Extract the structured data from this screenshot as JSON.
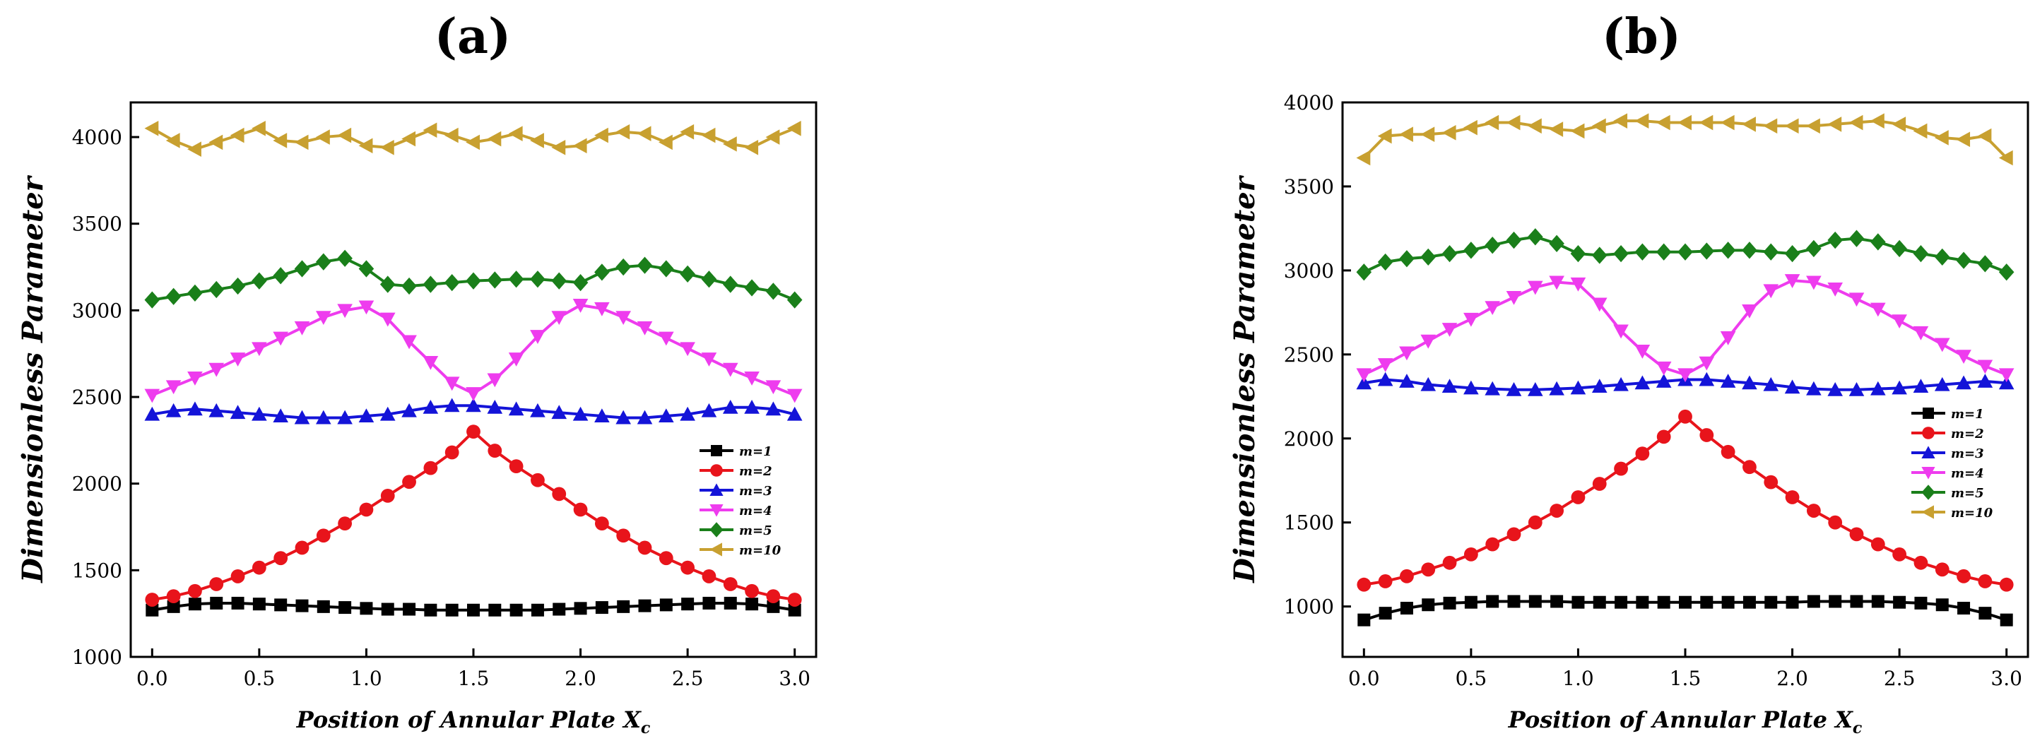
{
  "figure": {
    "panel_labels": [
      "(a)",
      "(b)"
    ]
  },
  "colors": {
    "m1": "#000000",
    "m2": "#e8141b",
    "m3": "#1414d8",
    "m4": "#ee3cee",
    "m5": "#1a7f1a",
    "m10": "#c8a030",
    "axis": "#000000"
  },
  "chart_data": [
    {
      "type": "line",
      "panel": "(a)",
      "xlabel": "Position of Annular Plate X",
      "xlabel_sub": "c",
      "ylabel": "Dimensionless Parameter",
      "xlim": [
        -0.1,
        3.1
      ],
      "ylim": [
        1000,
        4200
      ],
      "xticks": [
        0.0,
        0.5,
        1.0,
        1.5,
        2.0,
        2.5,
        3.0
      ],
      "xtick_labels": [
        "0.0",
        "0.5",
        "1.0",
        "1.5",
        "2.0",
        "2.5",
        "3.0"
      ],
      "yticks": [
        1000,
        1500,
        2000,
        2500,
        3000,
        3500,
        4000
      ],
      "ytick_labels": [
        "1000",
        "1500",
        "2000",
        "2500",
        "3000",
        "3500",
        "4000"
      ],
      "legend_position": "lower-right",
      "x": [
        0.0,
        0.1,
        0.2,
        0.3,
        0.4,
        0.5,
        0.6,
        0.7,
        0.8,
        0.9,
        1.0,
        1.1,
        1.2,
        1.3,
        1.4,
        1.5,
        1.6,
        1.7,
        1.8,
        1.9,
        2.0,
        2.1,
        2.2,
        2.3,
        2.4,
        2.5,
        2.6,
        2.7,
        2.8,
        2.9,
        3.0
      ],
      "series": [
        {
          "name": "m=1",
          "marker": "square",
          "values": [
            1270,
            1290,
            1305,
            1310,
            1310,
            1305,
            1300,
            1295,
            1290,
            1285,
            1280,
            1275,
            1275,
            1270,
            1270,
            1270,
            1270,
            1270,
            1270,
            1275,
            1280,
            1285,
            1290,
            1295,
            1300,
            1305,
            1310,
            1310,
            1305,
            1290,
            1270
          ]
        },
        {
          "name": "m=2",
          "marker": "circle",
          "values": [
            1330,
            1350,
            1380,
            1420,
            1465,
            1515,
            1570,
            1630,
            1700,
            1770,
            1850,
            1930,
            2010,
            2090,
            2180,
            2300,
            2190,
            2100,
            2020,
            1940,
            1850,
            1770,
            1700,
            1630,
            1570,
            1515,
            1465,
            1420,
            1380,
            1350,
            1330
          ]
        },
        {
          "name": "m=3",
          "marker": "triangle-up",
          "values": [
            2400,
            2420,
            2430,
            2420,
            2410,
            2400,
            2390,
            2380,
            2380,
            2380,
            2390,
            2400,
            2420,
            2440,
            2450,
            2450,
            2440,
            2430,
            2420,
            2410,
            2400,
            2390,
            2380,
            2380,
            2390,
            2400,
            2420,
            2440,
            2440,
            2430,
            2400
          ]
        },
        {
          "name": "m=4",
          "marker": "triangle-down",
          "values": [
            2510,
            2560,
            2610,
            2660,
            2720,
            2780,
            2840,
            2900,
            2960,
            3000,
            3020,
            2950,
            2820,
            2700,
            2580,
            2520,
            2600,
            2720,
            2850,
            2960,
            3030,
            3010,
            2960,
            2900,
            2840,
            2780,
            2720,
            2660,
            2610,
            2560,
            2510
          ]
        },
        {
          "name": "m=5",
          "marker": "diamond",
          "values": [
            3060,
            3080,
            3100,
            3120,
            3140,
            3170,
            3200,
            3240,
            3280,
            3300,
            3240,
            3150,
            3140,
            3150,
            3160,
            3170,
            3175,
            3180,
            3180,
            3170,
            3160,
            3220,
            3250,
            3260,
            3240,
            3210,
            3180,
            3150,
            3130,
            3110,
            3060
          ]
        },
        {
          "name": "m=10",
          "marker": "triangle-left",
          "values": [
            4050,
            3980,
            3930,
            3970,
            4010,
            4050,
            3980,
            3970,
            4000,
            4010,
            3950,
            3940,
            3990,
            4040,
            4010,
            3970,
            3990,
            4020,
            3980,
            3940,
            3950,
            4010,
            4030,
            4020,
            3970,
            4030,
            4010,
            3960,
            3940,
            4000,
            4050
          ]
        }
      ]
    },
    {
      "type": "line",
      "panel": "(b)",
      "xlabel": "Position of Annular Plate X",
      "xlabel_sub": "c",
      "ylabel": "Dimensionless Parameter",
      "xlim": [
        -0.1,
        3.1
      ],
      "ylim": [
        700,
        4000
      ],
      "xticks": [
        0.0,
        0.5,
        1.0,
        1.5,
        2.0,
        2.5,
        3.0
      ],
      "xtick_labels": [
        "0.0",
        "0.5",
        "1.0",
        "1.5",
        "2.0",
        "2.5",
        "3.0"
      ],
      "yticks": [
        1000,
        1500,
        2000,
        2500,
        3000,
        3500,
        4000
      ],
      "ytick_labels": [
        "1000",
        "1500",
        "2000",
        "2500",
        "3000",
        "3500",
        "4000"
      ],
      "legend_position": "lower-right",
      "x": [
        0.0,
        0.1,
        0.2,
        0.3,
        0.4,
        0.5,
        0.6,
        0.7,
        0.8,
        0.9,
        1.0,
        1.1,
        1.2,
        1.3,
        1.4,
        1.5,
        1.6,
        1.7,
        1.8,
        1.9,
        2.0,
        2.1,
        2.2,
        2.3,
        2.4,
        2.5,
        2.6,
        2.7,
        2.8,
        2.9,
        3.0
      ],
      "series": [
        {
          "name": "m=1",
          "marker": "square",
          "values": [
            920,
            960,
            990,
            1010,
            1020,
            1025,
            1030,
            1030,
            1030,
            1030,
            1025,
            1025,
            1025,
            1025,
            1025,
            1025,
            1025,
            1025,
            1025,
            1025,
            1025,
            1030,
            1030,
            1030,
            1030,
            1025,
            1020,
            1010,
            990,
            960,
            920
          ]
        },
        {
          "name": "m=2",
          "marker": "circle",
          "values": [
            1130,
            1150,
            1180,
            1220,
            1260,
            1310,
            1370,
            1430,
            1500,
            1570,
            1650,
            1730,
            1820,
            1910,
            2010,
            2130,
            2020,
            1920,
            1830,
            1740,
            1650,
            1570,
            1500,
            1430,
            1370,
            1310,
            1260,
            1220,
            1180,
            1150,
            1130
          ]
        },
        {
          "name": "m=3",
          "marker": "triangle-up",
          "values": [
            2330,
            2350,
            2340,
            2320,
            2310,
            2300,
            2295,
            2290,
            2290,
            2295,
            2300,
            2310,
            2320,
            2330,
            2340,
            2350,
            2350,
            2340,
            2330,
            2320,
            2305,
            2295,
            2290,
            2290,
            2295,
            2300,
            2310,
            2320,
            2330,
            2340,
            2330
          ]
        },
        {
          "name": "m=4",
          "marker": "triangle-down",
          "values": [
            2380,
            2440,
            2510,
            2580,
            2650,
            2710,
            2780,
            2840,
            2900,
            2930,
            2920,
            2800,
            2640,
            2520,
            2420,
            2380,
            2450,
            2600,
            2760,
            2880,
            2940,
            2930,
            2890,
            2830,
            2770,
            2700,
            2630,
            2560,
            2490,
            2430,
            2380
          ]
        },
        {
          "name": "m=5",
          "marker": "diamond",
          "values": [
            2990,
            3050,
            3070,
            3080,
            3100,
            3120,
            3150,
            3180,
            3200,
            3160,
            3100,
            3090,
            3100,
            3110,
            3110,
            3110,
            3115,
            3120,
            3120,
            3110,
            3100,
            3130,
            3180,
            3190,
            3170,
            3130,
            3100,
            3080,
            3060,
            3040,
            2990
          ]
        },
        {
          "name": "m=10",
          "marker": "triangle-left",
          "values": [
            3670,
            3800,
            3810,
            3810,
            3820,
            3850,
            3880,
            3880,
            3860,
            3840,
            3830,
            3860,
            3890,
            3890,
            3880,
            3880,
            3880,
            3880,
            3870,
            3860,
            3860,
            3860,
            3870,
            3880,
            3890,
            3870,
            3830,
            3790,
            3780,
            3800,
            3670
          ]
        }
      ]
    }
  ]
}
